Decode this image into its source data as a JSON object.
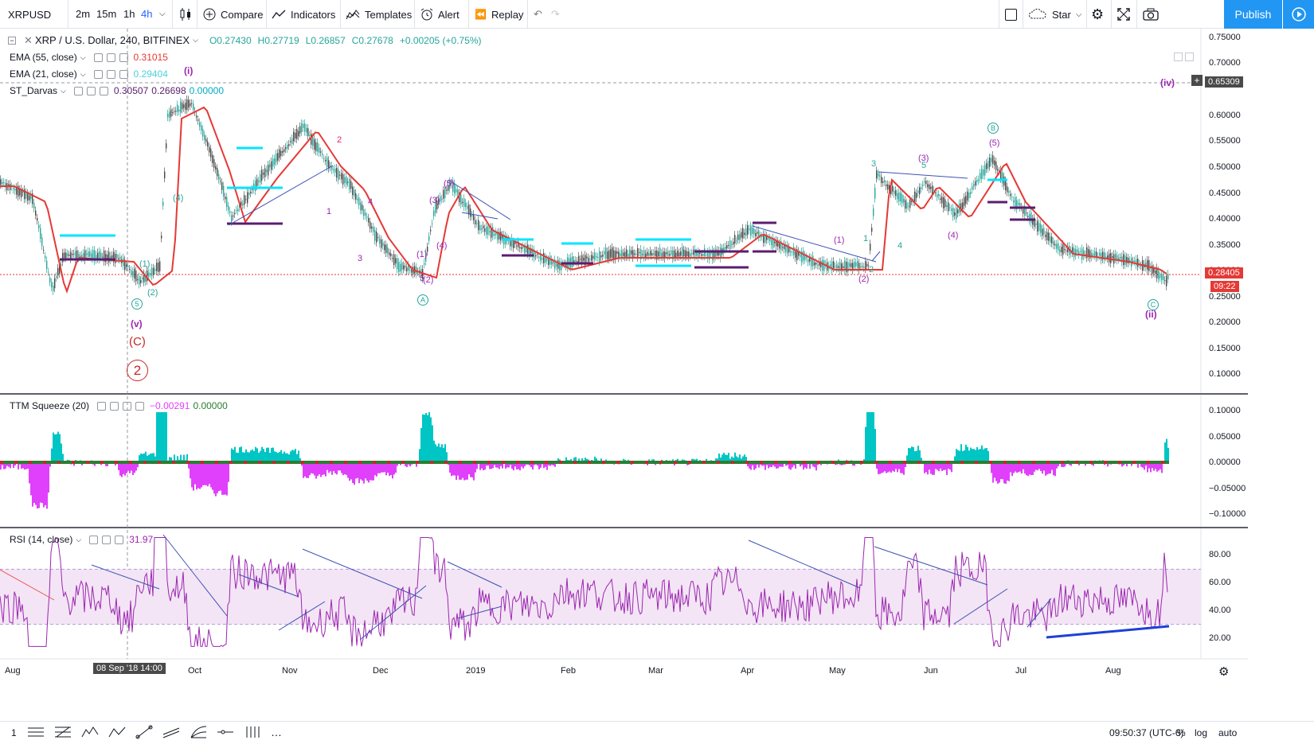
{
  "toolbar": {
    "symbol": "XRPUSD",
    "timeframes": [
      "2m",
      "15m",
      "1h",
      "4h"
    ],
    "active_timeframe": "4h",
    "compare_label": "Compare",
    "indicators_label": "Indicators",
    "templates_label": "Templates",
    "alert_label": "Alert",
    "replay_label": "Replay",
    "star_label": "Star",
    "publish_label": "Publish"
  },
  "legend": {
    "title": "XRP / U.S. Dollar, 240, BITFINEX",
    "o": "O0.27430",
    "h": "H0.27719",
    "l": "L0.26857",
    "c": "C0.27678",
    "change": "+0.00205 (+0.75%)",
    "ema55_label": "EMA (55, close)",
    "ema55_value": "0.31015",
    "ema21_label": "EMA (21, close)",
    "ema21_value": "0.29404",
    "darvas_label": "ST_Darvas",
    "darvas_v1": "0.30507",
    "darvas_v2": "0.26698",
    "darvas_v3": "0.00000",
    "ttm_label": "TTM Squeeze (20)",
    "ttm_v1": "−0.00291",
    "ttm_v2": "0.00000",
    "rsi_label": "RSI (14, close)",
    "rsi_value": "31.97"
  },
  "price_axis": [
    "0.75000",
    "0.70000",
    "0.65309",
    "0.60000",
    "0.55000",
    "0.50000",
    "0.45000",
    "0.40000",
    "0.35000",
    "0.30000",
    "0.28405",
    "0.25000",
    "0.20000",
    "0.15000",
    "0.10000"
  ],
  "current_price": "0.28405",
  "countdown": "09:22",
  "crosshair_price": "0.65309",
  "ttm_axis": [
    "0.10000",
    "0.05000",
    "0.00000",
    "−0.05000",
    "−0.10000"
  ],
  "rsi_axis": [
    "80.00",
    "60.00",
    "40.00",
    "20.00"
  ],
  "time_axis": [
    "Aug",
    "Oct",
    "Nov",
    "Dec",
    "2019",
    "Feb",
    "Mar",
    "Apr",
    "May",
    "Jun",
    "Jul",
    "Aug"
  ],
  "crosshair_time": "08 Sep '18  14:00",
  "waves": {
    "i": "(i)",
    "iv": "(iv)",
    "ii": "(ii)",
    "v": "(v)",
    "C": "(C)",
    "two": "2",
    "A": "A",
    "B": "B",
    "Cc": "C",
    "five": "5",
    "w1": "(1)",
    "w2": "(2)",
    "w3": "(3)",
    "w4": "(4)",
    "w5": "(5)",
    "n1": "1",
    "n2": "2",
    "n3": "3",
    "n4": "4",
    "n5": "5"
  },
  "bottom": {
    "range": "1",
    "clock": "09:50:37 (UTC-6)",
    "percent": "%",
    "log": "log",
    "auto": "auto"
  },
  "colors": {
    "accent": "#2196f3",
    "ema": "#e53935",
    "darvas_top": "#00e5ff",
    "darvas_bottom": "#5b1d6e",
    "rsi_line": "#9c27b0",
    "rsi_band": "#f3e5f5",
    "ttm_pos": "#00c5c5",
    "ttm_neg": "#e040fb",
    "wave_purple": "#9c27b0",
    "wave_red": "#c62828",
    "wave_teal": "#26a69a"
  }
}
